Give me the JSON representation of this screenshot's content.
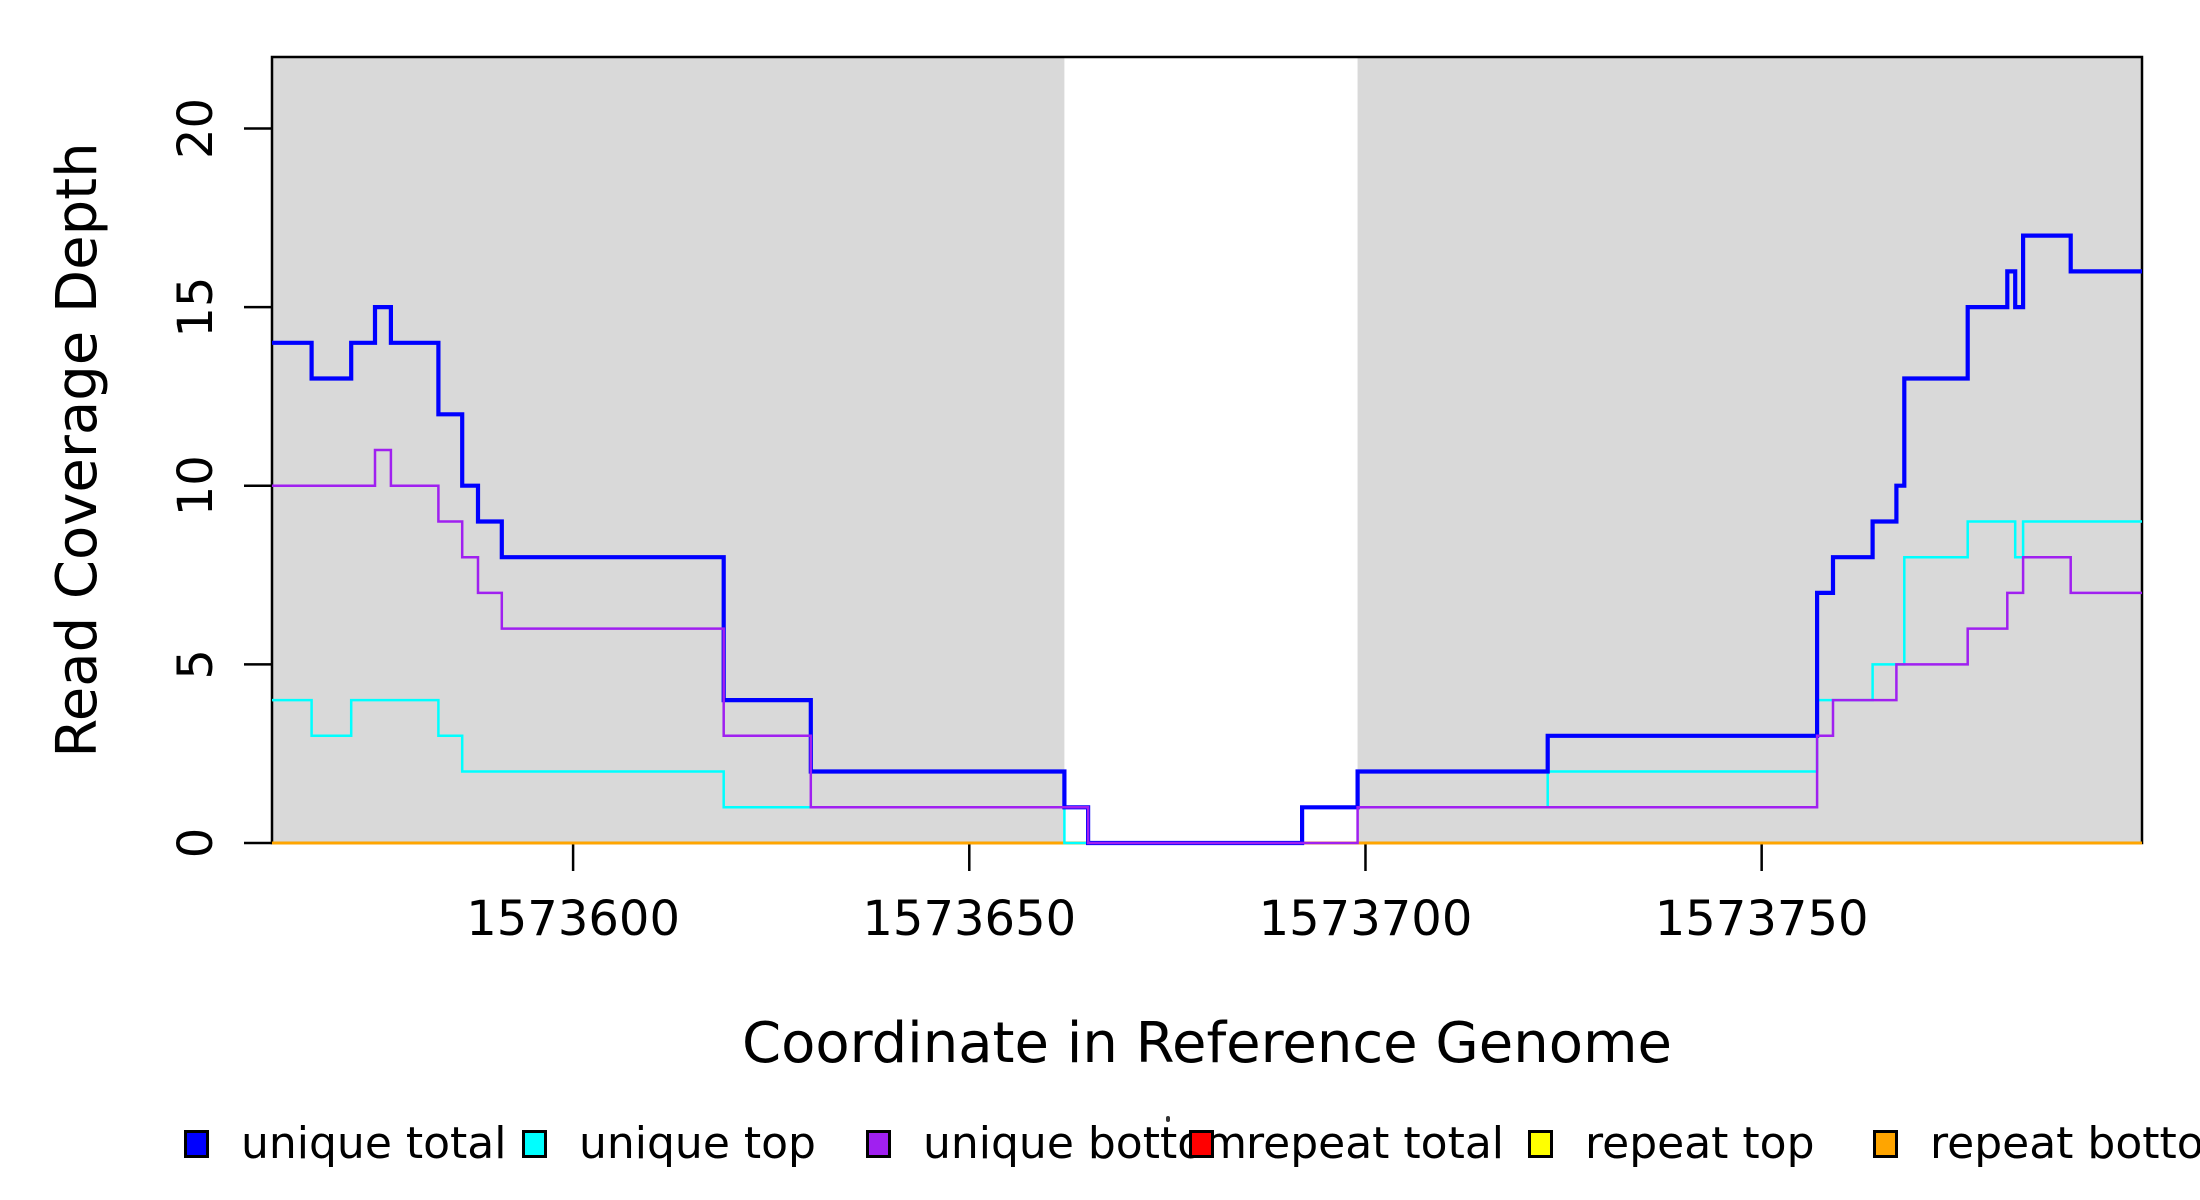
{
  "chart_data": {
    "type": "line",
    "subtype": "step",
    "title": "",
    "xlabel": "Coordinate in Reference Genome",
    "ylabel": "Read Coverage Depth",
    "xlim": [
      1573562,
      1573798
    ],
    "ylim": [
      0,
      22
    ],
    "grid": false,
    "x_ticks": {
      "values": [
        1573600,
        1573650,
        1573700,
        1573750
      ],
      "labels": [
        "1573600",
        "1573650",
        "1573700",
        "1573750"
      ]
    },
    "y_ticks": {
      "values": [
        0,
        5,
        10,
        15,
        20
      ],
      "labels": [
        "0",
        "5",
        "10",
        "15",
        "20"
      ]
    },
    "background_shading": {
      "color": "#D9D9D9",
      "regions": [
        [
          1573562,
          1573662
        ],
        [
          1573699,
          1573798
        ]
      ]
    },
    "axis_color": "#000000",
    "legend": {
      "position": "bottom",
      "entries": [
        {
          "label": "unique total",
          "color": "#0000FF"
        },
        {
          "label": "unique top",
          "color": "#00FFFF"
        },
        {
          "label": "unique bottom",
          "color": "#A020F0"
        },
        {
          "label": "repeat total",
          "color": "#FF0000"
        },
        {
          "label": "repeat top",
          "color": "#FFFF00"
        },
        {
          "label": "repeat bottom",
          "color": "#FFA500"
        }
      ]
    },
    "series": [
      {
        "name": "unique total",
        "color": "#0000FF",
        "line_width": 4.2,
        "z": 5,
        "points": [
          [
            1573562,
            14
          ],
          [
            1573567,
            13
          ],
          [
            1573572,
            14
          ],
          [
            1573575,
            15
          ],
          [
            1573577,
            14
          ],
          [
            1573583,
            12
          ],
          [
            1573586,
            10
          ],
          [
            1573588,
            9
          ],
          [
            1573591,
            8
          ],
          [
            1573619,
            4
          ],
          [
            1573630,
            2
          ],
          [
            1573662,
            1
          ],
          [
            1573665,
            0
          ],
          [
            1573692,
            1
          ],
          [
            1573699,
            2
          ],
          [
            1573723,
            3
          ],
          [
            1573757,
            7
          ],
          [
            1573759,
            8
          ],
          [
            1573764,
            9
          ],
          [
            1573767,
            10
          ],
          [
            1573768,
            13
          ],
          [
            1573776,
            15
          ],
          [
            1573781,
            16
          ],
          [
            1573782,
            15
          ],
          [
            1573783,
            17
          ],
          [
            1573789,
            16
          ],
          [
            1573798,
            16
          ]
        ]
      },
      {
        "name": "unique top",
        "color": "#00FFFF",
        "line_width": 2.5,
        "z": 4,
        "points": [
          [
            1573562,
            4
          ],
          [
            1573567,
            3
          ],
          [
            1573572,
            4
          ],
          [
            1573583,
            3
          ],
          [
            1573586,
            2
          ],
          [
            1573619,
            1
          ],
          [
            1573662,
            0
          ],
          [
            1573692,
            1
          ],
          [
            1573723,
            2
          ],
          [
            1573757,
            4
          ],
          [
            1573764,
            5
          ],
          [
            1573768,
            8
          ],
          [
            1573776,
            9
          ],
          [
            1573782,
            8
          ],
          [
            1573783,
            9
          ],
          [
            1573798,
            9
          ]
        ]
      },
      {
        "name": "unique bottom",
        "color": "#A020F0",
        "line_width": 2.5,
        "z": 6,
        "points": [
          [
            1573562,
            10
          ],
          [
            1573575,
            11
          ],
          [
            1573577,
            10
          ],
          [
            1573583,
            9
          ],
          [
            1573586,
            8
          ],
          [
            1573588,
            7
          ],
          [
            1573591,
            6
          ],
          [
            1573619,
            3
          ],
          [
            1573630,
            1
          ],
          [
            1573665,
            0
          ],
          [
            1573699,
            1
          ],
          [
            1573757,
            3
          ],
          [
            1573759,
            4
          ],
          [
            1573767,
            5
          ],
          [
            1573776,
            6
          ],
          [
            1573781,
            7
          ],
          [
            1573783,
            8
          ],
          [
            1573789,
            7
          ],
          [
            1573798,
            7
          ]
        ]
      },
      {
        "name": "repeat total",
        "color": "#FF0000",
        "line_width": 2.5,
        "z": 1,
        "points": [
          [
            1573562,
            0
          ],
          [
            1573798,
            0
          ]
        ]
      },
      {
        "name": "repeat top",
        "color": "#FFFF00",
        "line_width": 2.5,
        "z": 2,
        "points": [
          [
            1573562,
            0
          ],
          [
            1573798,
            0
          ]
        ]
      },
      {
        "name": "repeat bottom",
        "color": "#FFA500",
        "line_width": 2.8,
        "z": 3,
        "points": [
          [
            1573562,
            0
          ],
          [
            1573798,
            0
          ]
        ]
      }
    ]
  }
}
